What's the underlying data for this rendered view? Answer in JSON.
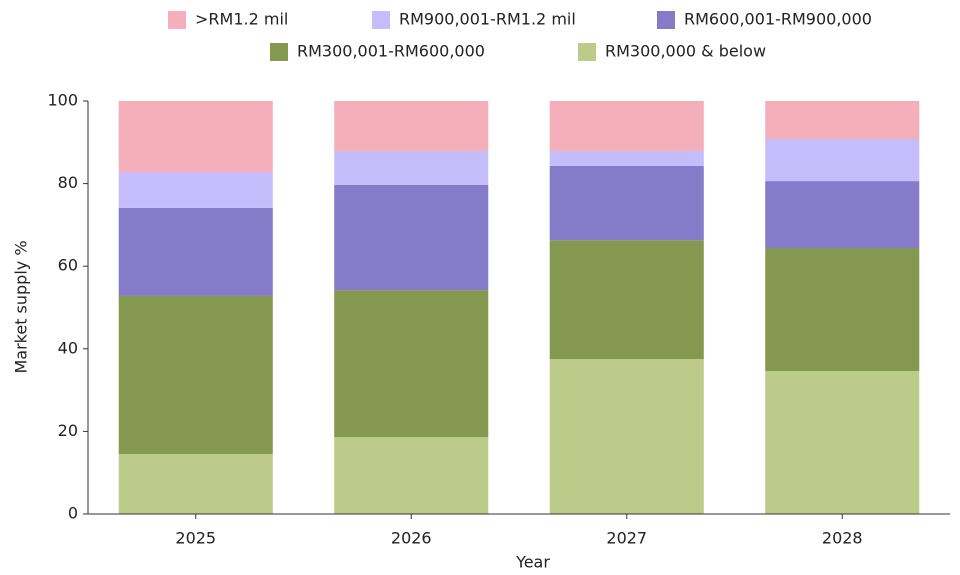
{
  "chart_data": {
    "type": "stacked_bar",
    "categories": [
      "2025",
      "2026",
      "2027",
      "2028"
    ],
    "series": [
      {
        "name": ">RM1.2 mil",
        "color": "#f4afbb",
        "values": [
          17.2,
          12.1,
          12.1,
          9.2
        ]
      },
      {
        "name": "RM900,001-RM1.2 mil",
        "color": "#c5bdfb",
        "values": [
          8.7,
          8.2,
          3.6,
          10.2
        ]
      },
      {
        "name": "RM600,001-RM900,000",
        "color": "#857bc8",
        "values": [
          21.3,
          25.5,
          18.0,
          16.2
        ]
      },
      {
        "name": "RM300,001-RM600,000",
        "color": "#849850",
        "values": [
          38.3,
          35.6,
          28.8,
          29.8
        ]
      },
      {
        "name": "RM300,000 & below",
        "color": "#bdcb8a",
        "values": [
          14.5,
          18.6,
          37.5,
          34.6
        ]
      }
    ],
    "xlabel": "Year",
    "ylabel": "Market supply %",
    "ylim": [
      0,
      100
    ],
    "yticks": [
      0,
      20,
      40,
      60,
      80,
      100
    ],
    "grid": false
  }
}
